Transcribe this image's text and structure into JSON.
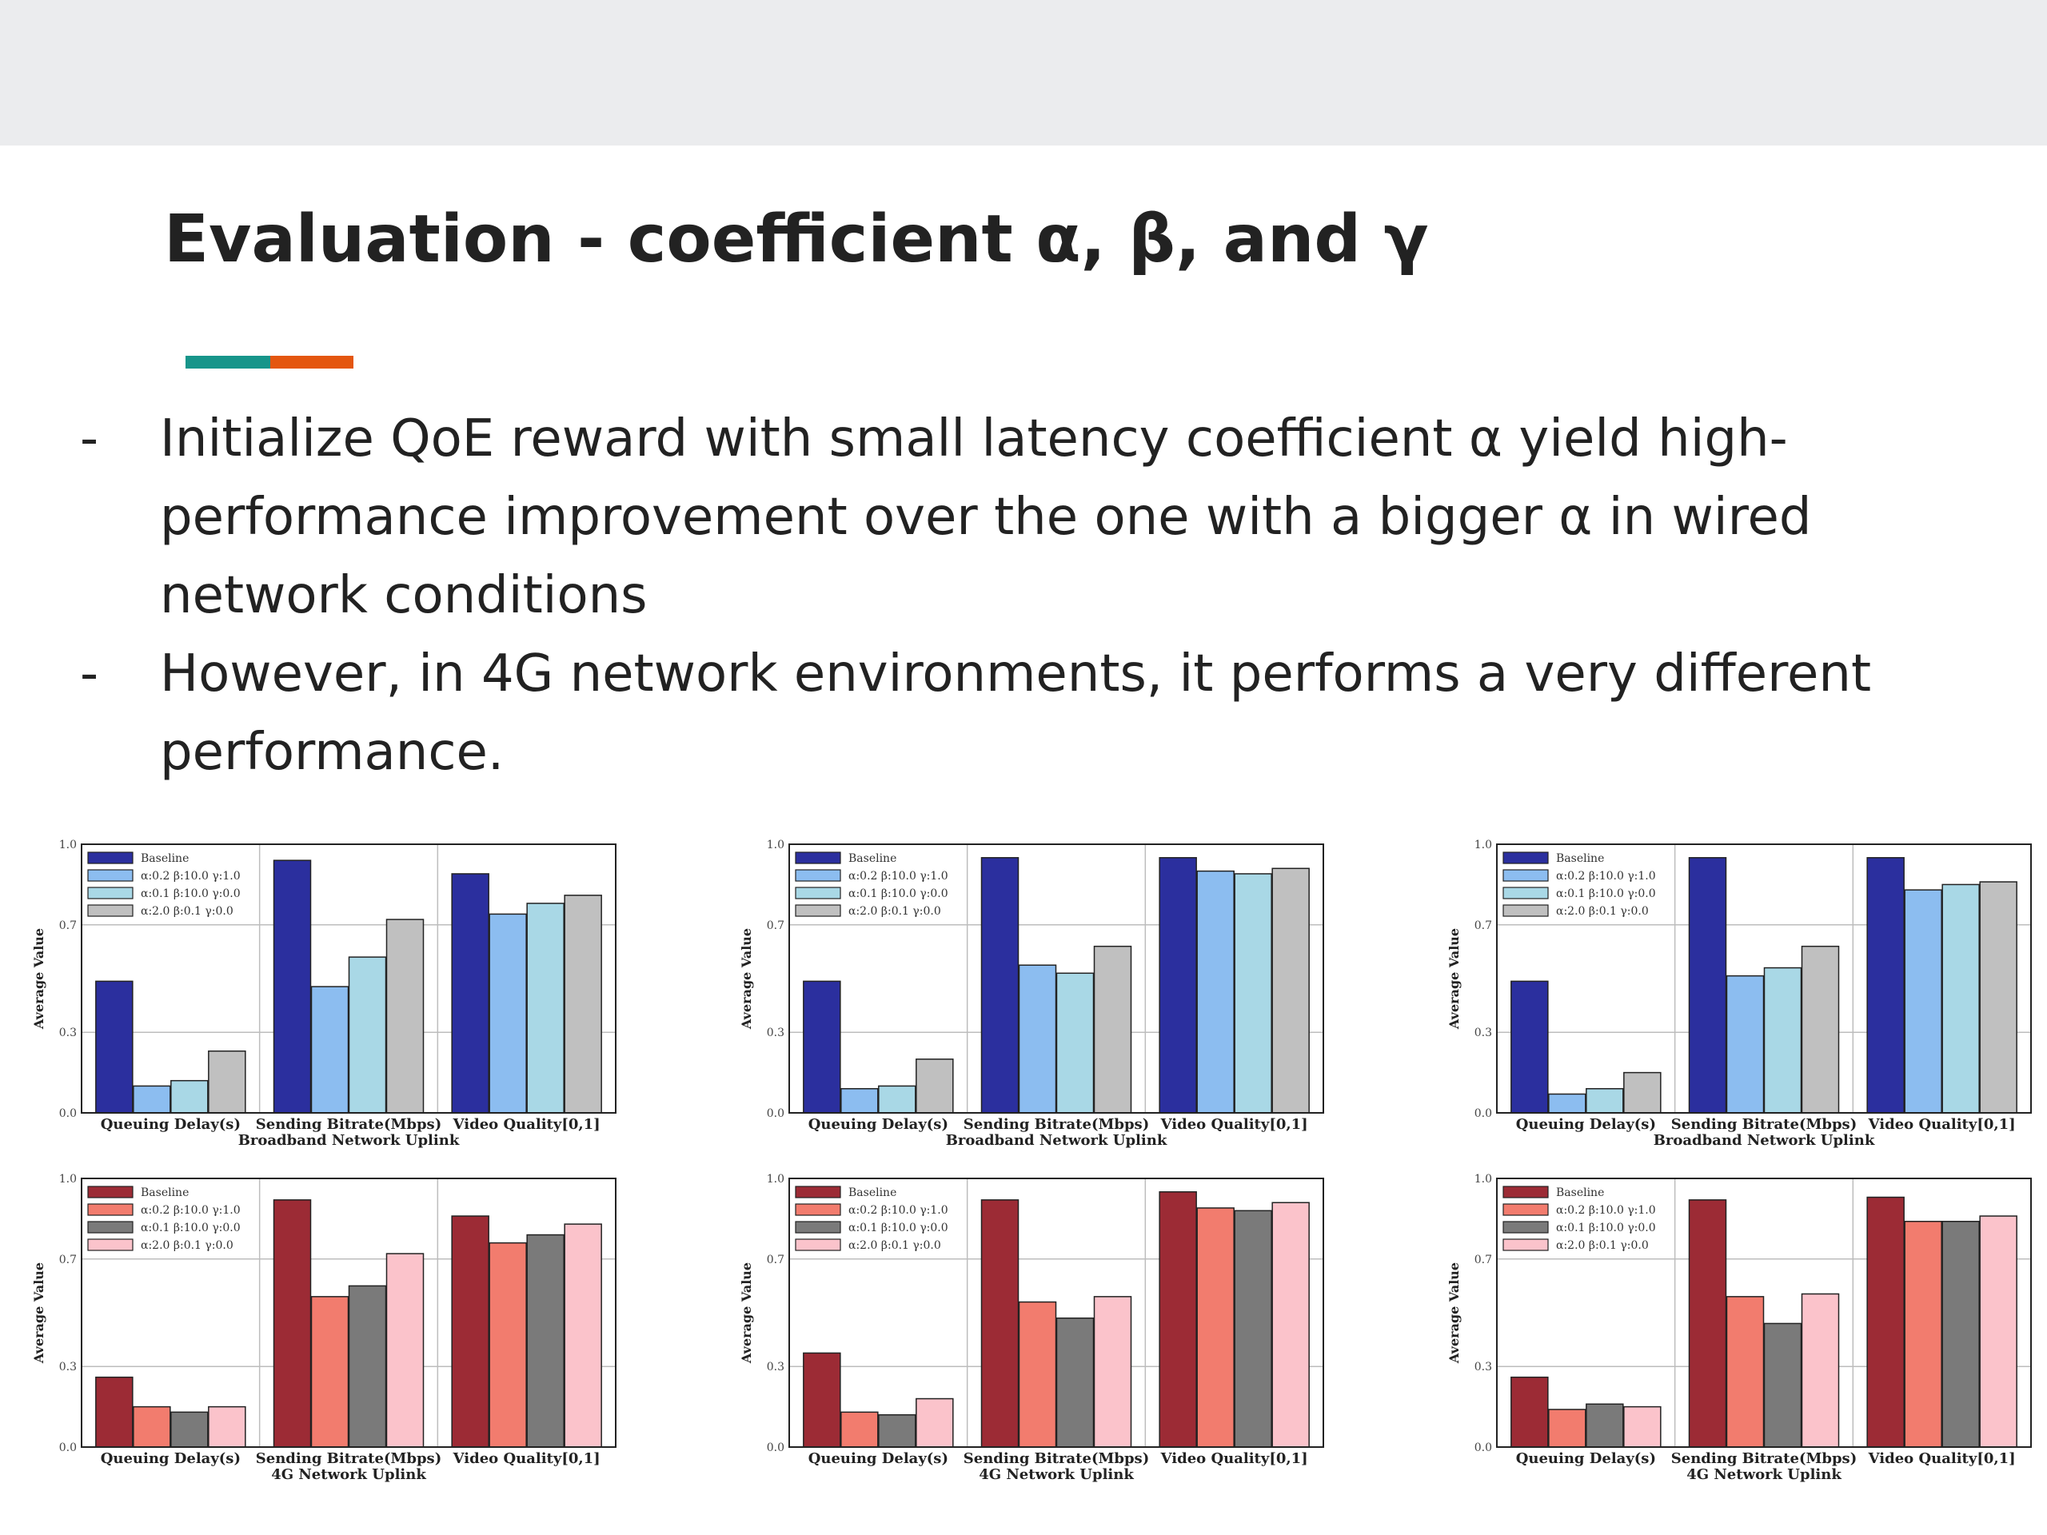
{
  "slide": {
    "title": "Evaluation - coefficient α, β, and γ",
    "bullet_marker": "-",
    "bullets": [
      "Initialize QoE reward with small latency coefficient α yield high-performance improvement over the one with a bigger α in wired network conditions",
      "However, in 4G network environments, it performs a very different performance."
    ],
    "accent_colors": [
      "#17958a",
      "#e4560f"
    ]
  },
  "chart_data": [
    {
      "type": "bar",
      "xlabel": "Broadband Network Uplink",
      "ylabel": "Average Value",
      "categories": [
        "Queuing Delay(s)",
        "Sending Bitrate(Mbps)",
        "Video Quality[0,1]"
      ],
      "ylim": [
        0,
        1.0
      ],
      "yticks": [
        "0.0",
        "0.3",
        "0.7",
        "1.0"
      ],
      "grid": true,
      "legend_position": "top-left",
      "series": [
        {
          "name": "Baseline",
          "color": "#2b2f9e",
          "values": [
            0.49,
            0.94,
            0.89
          ]
        },
        {
          "name": "α:0.2 β:10.0 γ:1.0",
          "color": "#8cbdf0",
          "values": [
            0.1,
            0.47,
            0.74
          ]
        },
        {
          "name": "α:0.1 β:10.0 γ:0.0",
          "color": "#a9d8e6",
          "values": [
            0.12,
            0.58,
            0.78
          ]
        },
        {
          "name": "α:2.0 β:0.1 γ:0.0",
          "color": "#c0c0c0",
          "values": [
            0.23,
            0.72,
            0.81
          ]
        }
      ]
    },
    {
      "type": "bar",
      "xlabel": "Broadband Network Uplink",
      "ylabel": "Average Value",
      "categories": [
        "Queuing Delay(s)",
        "Sending Bitrate(Mbps)",
        "Video Quality[0,1]"
      ],
      "ylim": [
        0,
        1.0
      ],
      "yticks": [
        "0.0",
        "0.3",
        "0.7",
        "1.0"
      ],
      "grid": true,
      "legend_position": "top-left",
      "series": [
        {
          "name": "Baseline",
          "color": "#2b2f9e",
          "values": [
            0.49,
            0.95,
            0.95
          ]
        },
        {
          "name": "α:0.2 β:10.0 γ:1.0",
          "color": "#8cbdf0",
          "values": [
            0.09,
            0.55,
            0.9
          ]
        },
        {
          "name": "α:0.1 β:10.0 γ:0.0",
          "color": "#a9d8e6",
          "values": [
            0.1,
            0.52,
            0.89
          ]
        },
        {
          "name": "α:2.0 β:0.1 γ:0.0",
          "color": "#c0c0c0",
          "values": [
            0.2,
            0.62,
            0.91
          ]
        }
      ]
    },
    {
      "type": "bar",
      "xlabel": "Broadband Network Uplink",
      "ylabel": "Average Value",
      "categories": [
        "Queuing Delay(s)",
        "Sending Bitrate(Mbps)",
        "Video Quality[0,1]"
      ],
      "ylim": [
        0,
        1.0
      ],
      "yticks": [
        "0.0",
        "0.3",
        "0.7",
        "1.0"
      ],
      "grid": true,
      "legend_position": "top-left",
      "series": [
        {
          "name": "Baseline",
          "color": "#2b2f9e",
          "values": [
            0.49,
            0.95,
            0.95
          ]
        },
        {
          "name": "α:0.2 β:10.0 γ:1.0",
          "color": "#8cbdf0",
          "values": [
            0.07,
            0.51,
            0.83
          ]
        },
        {
          "name": "α:0.1 β:10.0 γ:0.0",
          "color": "#a9d8e6",
          "values": [
            0.09,
            0.54,
            0.85
          ]
        },
        {
          "name": "α:2.0 β:0.1 γ:0.0",
          "color": "#c0c0c0",
          "values": [
            0.15,
            0.62,
            0.86
          ]
        }
      ]
    },
    {
      "type": "bar",
      "xlabel": "4G Network Uplink",
      "ylabel": "Average Value",
      "categories": [
        "Queuing Delay(s)",
        "Sending Bitrate(Mbps)",
        "Video Quality[0,1]"
      ],
      "ylim": [
        0,
        1.0
      ],
      "yticks": [
        "0.0",
        "0.3",
        "0.7",
        "1.0"
      ],
      "grid": true,
      "legend_position": "top-left",
      "series": [
        {
          "name": "Baseline",
          "color": "#9c2b35",
          "values": [
            0.26,
            0.92,
            0.86
          ]
        },
        {
          "name": "α:0.2 β:10.0 γ:1.0",
          "color": "#f27c6e",
          "values": [
            0.15,
            0.56,
            0.76
          ]
        },
        {
          "name": "α:0.1 β:10.0 γ:0.0",
          "color": "#7a7a7a",
          "values": [
            0.13,
            0.6,
            0.79
          ]
        },
        {
          "name": "α:2.0 β:0.1 γ:0.0",
          "color": "#fbc3cb",
          "values": [
            0.15,
            0.72,
            0.83
          ]
        }
      ]
    },
    {
      "type": "bar",
      "xlabel": "4G Network Uplink",
      "ylabel": "Average Value",
      "categories": [
        "Queuing Delay(s)",
        "Sending Bitrate(Mbps)",
        "Video Quality[0,1]"
      ],
      "ylim": [
        0,
        1.0
      ],
      "yticks": [
        "0.0",
        "0.3",
        "0.7",
        "1.0"
      ],
      "grid": true,
      "legend_position": "top-left",
      "series": [
        {
          "name": "Baseline",
          "color": "#9c2b35",
          "values": [
            0.35,
            0.92,
            0.95
          ]
        },
        {
          "name": "α:0.2 β:10.0 γ:1.0",
          "color": "#f27c6e",
          "values": [
            0.13,
            0.54,
            0.89
          ]
        },
        {
          "name": "α:0.1 β:10.0 γ:0.0",
          "color": "#7a7a7a",
          "values": [
            0.12,
            0.48,
            0.88
          ]
        },
        {
          "name": "α:2.0 β:0.1 γ:0.0",
          "color": "#fbc3cb",
          "values": [
            0.18,
            0.56,
            0.91
          ]
        }
      ]
    },
    {
      "type": "bar",
      "xlabel": "4G Network Uplink",
      "ylabel": "Average Value",
      "categories": [
        "Queuing Delay(s)",
        "Sending Bitrate(Mbps)",
        "Video Quality[0,1]"
      ],
      "ylim": [
        0,
        1.0
      ],
      "yticks": [
        "0.0",
        "0.3",
        "0.7",
        "1.0"
      ],
      "grid": true,
      "legend_position": "top-left",
      "series": [
        {
          "name": "Baseline",
          "color": "#9c2b35",
          "values": [
            0.26,
            0.92,
            0.93
          ]
        },
        {
          "name": "α:0.2 β:10.0 γ:1.0",
          "color": "#f27c6e",
          "values": [
            0.14,
            0.56,
            0.84
          ]
        },
        {
          "name": "α:0.1 β:10.0 γ:0.0",
          "color": "#7a7a7a",
          "values": [
            0.16,
            0.46,
            0.84
          ]
        },
        {
          "name": "α:2.0 β:0.1 γ:0.0",
          "color": "#fbc3cb",
          "values": [
            0.15,
            0.57,
            0.86
          ]
        }
      ]
    }
  ]
}
